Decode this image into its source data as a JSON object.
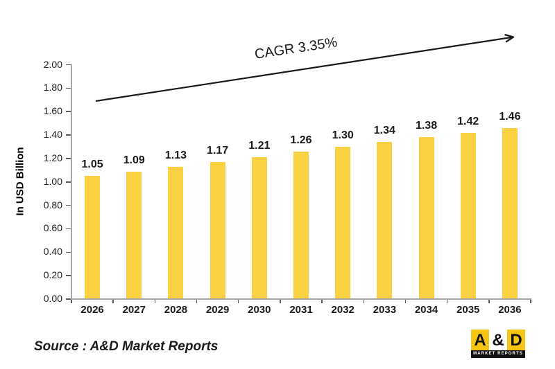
{
  "chart_data": {
    "type": "bar",
    "categories": [
      "2026",
      "2027",
      "2028",
      "2029",
      "2030",
      "2031",
      "2032",
      "2033",
      "2034",
      "2035",
      "2036"
    ],
    "values": [
      1.05,
      1.09,
      1.13,
      1.17,
      1.21,
      1.26,
      1.3,
      1.34,
      1.38,
      1.42,
      1.46
    ],
    "title": "",
    "xlabel": "",
    "ylabel": "In USD Billion",
    "ylim": [
      0.0,
      2.0
    ],
    "ytick_step": 0.2,
    "ytick_labels": [
      "0.00",
      "0.20",
      "0.40",
      "0.60",
      "0.80",
      "1.00",
      "1.20",
      "1.40",
      "1.60",
      "1.80",
      "2.00"
    ],
    "grid": false,
    "legend_position": "none",
    "bar_color": "#FBD144",
    "annotation": "CAGR 3.35%"
  },
  "source": {
    "text": "Source : A&D Market Reports"
  },
  "logo": {
    "letter_a": "A",
    "ampersand": "&",
    "letter_d": "D",
    "tagline": "MARKET REPORTS",
    "yellow": "#F5C511",
    "black": "#111111"
  },
  "colors": {
    "bar_yellow": "#FBD144",
    "axis_gray": "#A6A6A6",
    "tick_gray": "#595959",
    "arrow_black": "#1A1A1A",
    "text_black": "#1A1A1A"
  }
}
